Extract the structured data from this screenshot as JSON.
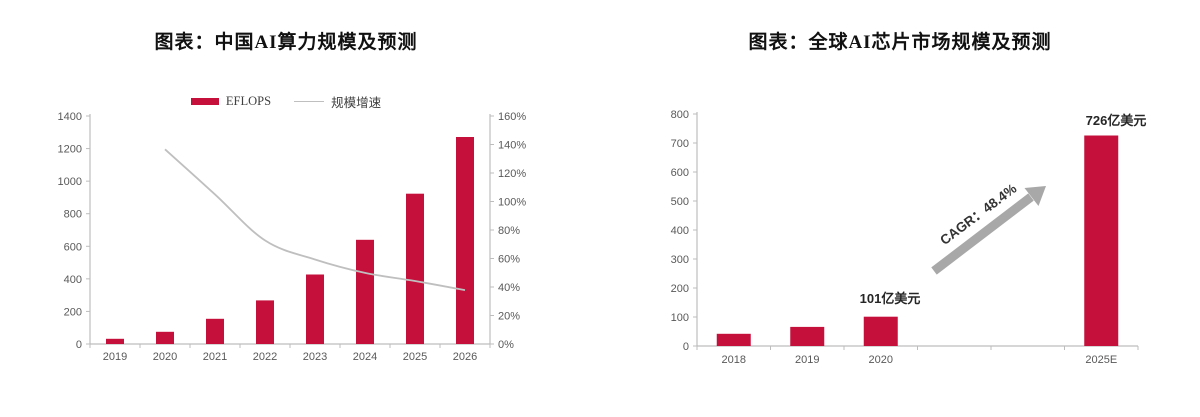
{
  "page": {
    "background": "#ffffff"
  },
  "colors": {
    "bar_red": "#C5103C",
    "line_gray": "#BFBFBF",
    "axis_gray": "#BDBDBD",
    "tick_label_gray": "#595959",
    "arrow_gray": "#A8A8A8",
    "title_black": "#111111",
    "annotation_black": "#262626"
  },
  "chart_data": [
    {
      "type": "bar",
      "title": "图表：中国AI算力规模及预测",
      "categories": [
        "2019",
        "2020",
        "2021",
        "2022",
        "2023",
        "2024",
        "2025",
        "2026"
      ],
      "series": [
        {
          "name": "EFLOPS",
          "type": "bar",
          "yaxis": "left",
          "values": [
            32,
            75,
            155,
            268,
            427,
            640,
            923,
            1271
          ]
        },
        {
          "name": "规模增速",
          "type": "line",
          "yaxis": "right",
          "values": [
            null,
            136.6,
            105,
            72.7,
            59.3,
            49.9,
            44.2,
            37.8
          ]
        }
      ],
      "left_axis": {
        "min": 0,
        "max": 1400,
        "tick_labels": [
          "0",
          "200",
          "400",
          "600",
          "800",
          "1000",
          "1200",
          "1400"
        ]
      },
      "right_axis": {
        "min": 0,
        "max": 160,
        "tick_labels": [
          "0%",
          "20%",
          "40%",
          "60%",
          "80%",
          "100%",
          "120%",
          "140%",
          "160%"
        ]
      },
      "legend_position": "top",
      "grid": false
    },
    {
      "type": "bar",
      "title": "图表：全球AI芯片市场规模及预测",
      "categories": [
        "2018",
        "2019",
        "2020",
        "",
        "",
        "2025E"
      ],
      "values": [
        42,
        66,
        101,
        null,
        null,
        726
      ],
      "y_axis": {
        "min": 0,
        "max": 800,
        "tick_labels": [
          "0",
          "100",
          "200",
          "300",
          "400",
          "500",
          "600",
          "700",
          "800"
        ]
      },
      "annotations": [
        {
          "text": "101亿美元",
          "category": "2020"
        },
        {
          "text": "726亿美元",
          "category": "2025E"
        },
        {
          "text": "CAGR：48.4%",
          "type": "arrow",
          "direction": "up-right"
        }
      ],
      "grid": false
    }
  ]
}
